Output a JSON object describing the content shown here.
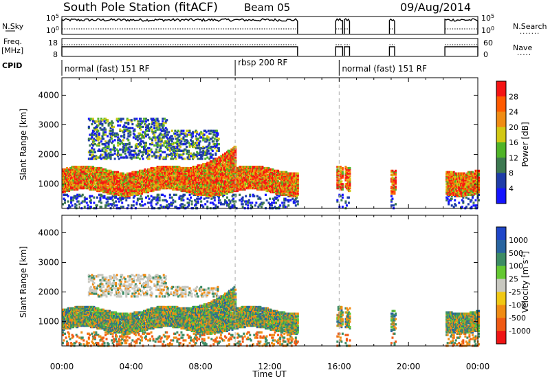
{
  "header": {
    "station": "South Pole Station (fitACF)",
    "beam": "Beam 05",
    "date": "09/Aug/2014"
  },
  "strips": {
    "nsky_label": "N.Sky",
    "nsky_ticks": [
      "10^5",
      "10^0"
    ],
    "nsearch_label": "N.Search",
    "nsearch_ticks": [
      "10^5",
      "10^0"
    ],
    "freq_label_1": "Freq.",
    "freq_label_2": "[MHz]",
    "freq_ticks": [
      "18",
      "8"
    ],
    "nave_label": "Nave",
    "nave_ticks": [
      "60",
      "0"
    ],
    "cpid_label": "CPID",
    "cpid_segments": [
      {
        "label": "normal (fast) 151 RF",
        "start_h": 0.0
      },
      {
        "label": "rbsp 200 RF",
        "start_h": 10.0
      },
      {
        "label": "normal (fast) 151 RF",
        "start_h": 16.0
      }
    ],
    "on_intervals_h": [
      [
        0.0,
        13.6
      ],
      [
        15.8,
        16.2
      ],
      [
        16.3,
        16.6
      ],
      [
        18.9,
        19.2
      ],
      [
        22.1,
        24.0
      ]
    ]
  },
  "chart_data": [
    {
      "type": "heatmap",
      "quantity": "Power",
      "ylabel": "Slant Range [km]",
      "ylim": [
        180,
        4590
      ],
      "xlim_h": [
        0,
        24
      ],
      "yticks": [
        "1000",
        "2000",
        "3000",
        "4000"
      ],
      "colorbar_label": "Power [dB]",
      "colorbar_ticks": [
        "4",
        "8",
        "12",
        "16",
        "20",
        "24",
        "28"
      ],
      "colorbar_colors": [
        "#1414ff",
        "#1e3ca8",
        "#3c7850",
        "#50b428",
        "#d2c814",
        "#f08c14",
        "#ff5a00",
        "#f51414"
      ],
      "main_band_km": [
        700,
        1500
      ],
      "upper_patch_km": [
        1800,
        3200
      ]
    },
    {
      "type": "heatmap",
      "quantity": "Velocity",
      "ylabel": "Slant Range [km]",
      "ylim": [
        180,
        4590
      ],
      "xlim_h": [
        0,
        24
      ],
      "yticks": [
        "1000",
        "2000",
        "3000",
        "4000"
      ],
      "colorbar_label": "Velocity [m s^-1]",
      "colorbar_ticks": [
        "1000",
        "500",
        "100",
        "25",
        "-25",
        "-100",
        "-500",
        "-1000"
      ],
      "colorbar_colors": [
        "#1e46c8",
        "#2864a0",
        "#3c8c64",
        "#64c832",
        "#c8c8c0",
        "#f0c814",
        "#f08c14",
        "#f05a14",
        "#f01414"
      ],
      "main_band_km": [
        700,
        1400
      ],
      "upper_patch_km": [
        1800,
        2600
      ]
    }
  ],
  "xaxis": {
    "label": "Time UT",
    "ticks": [
      "00:00",
      "04:00",
      "08:00",
      "12:00",
      "16:00",
      "20:00",
      "00:00"
    ]
  }
}
